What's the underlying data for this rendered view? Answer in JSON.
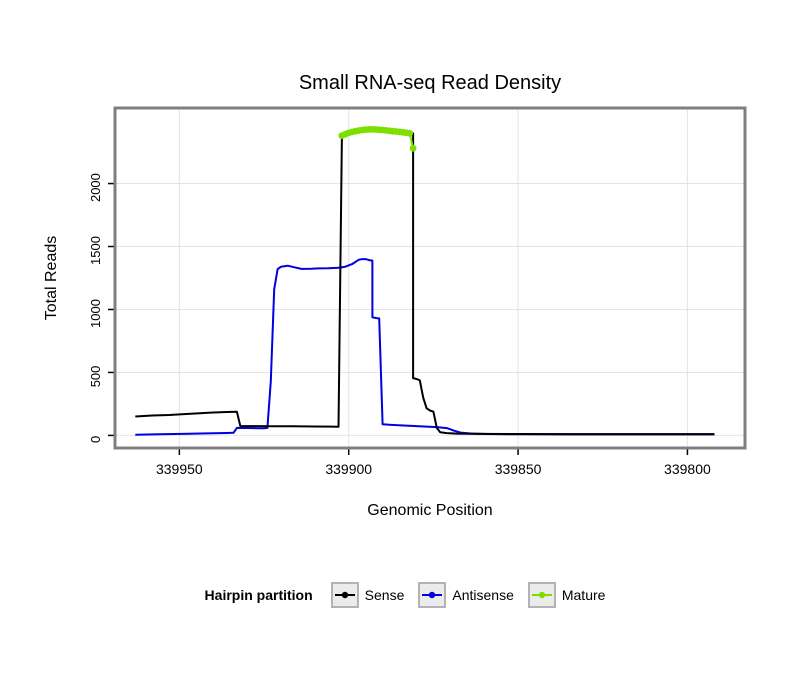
{
  "chart_data": {
    "type": "line",
    "title": "Small RNA-seq Read Density",
    "xlabel": "Genomic Position",
    "ylabel": "Total Reads",
    "legend_title": "Hairpin partition",
    "legend_position": "bottom",
    "grid": true,
    "x_reversed": true,
    "xlim": [
      339969,
      339783
    ],
    "ylim": [
      -100,
      2600
    ],
    "x_ticks": [
      339950,
      339900,
      339850,
      339800
    ],
    "y_ticks": [
      0,
      500,
      1000,
      1500,
      2000
    ],
    "panel_border_color": "#7f7f7f",
    "gridline_color": "#e4e4e4",
    "series": [
      {
        "name": "Sense",
        "color": "#000000",
        "marker": false,
        "z": 2,
        "points": [
          [
            339963,
            150
          ],
          [
            339958,
            158
          ],
          [
            339953,
            162
          ],
          [
            339948,
            170
          ],
          [
            339944,
            176
          ],
          [
            339940,
            182
          ],
          [
            339936,
            186
          ],
          [
            339933,
            188
          ],
          [
            339932,
            75
          ],
          [
            339928,
            74
          ],
          [
            339923,
            73
          ],
          [
            339917,
            72
          ],
          [
            339910,
            71
          ],
          [
            339905,
            70
          ],
          [
            339903,
            68
          ],
          [
            339902,
            2370
          ],
          [
            339901,
            2392
          ],
          [
            339900,
            2402
          ],
          [
            339898,
            2416
          ],
          [
            339896,
            2425
          ],
          [
            339894,
            2428
          ],
          [
            339892,
            2428
          ],
          [
            339890,
            2424
          ],
          [
            339888,
            2418
          ],
          [
            339886,
            2412
          ],
          [
            339884,
            2406
          ],
          [
            339882,
            2400
          ],
          [
            339881,
            2398
          ],
          [
            339881,
            455
          ],
          [
            339880,
            448
          ],
          [
            339879,
            438
          ],
          [
            339878,
            300
          ],
          [
            339877,
            215
          ],
          [
            339876,
            198
          ],
          [
            339875,
            188
          ],
          [
            339874,
            60
          ],
          [
            339873,
            25
          ],
          [
            339871,
            18
          ],
          [
            339868,
            14
          ],
          [
            339862,
            12
          ],
          [
            339850,
            11
          ],
          [
            339835,
            10
          ],
          [
            339820,
            10
          ],
          [
            339805,
            10
          ],
          [
            339792,
            10
          ]
        ]
      },
      {
        "name": "Antisense",
        "color": "#0000E0",
        "marker": false,
        "z": 1,
        "points": [
          [
            339963,
            6
          ],
          [
            339956,
            9
          ],
          [
            339949,
            12
          ],
          [
            339942,
            16
          ],
          [
            339936,
            19
          ],
          [
            339934,
            21
          ],
          [
            339933,
            60
          ],
          [
            339930,
            59
          ],
          [
            339927,
            57
          ],
          [
            339925,
            57
          ],
          [
            339924,
            60
          ],
          [
            339923,
            430
          ],
          [
            339922,
            1160
          ],
          [
            339921,
            1320
          ],
          [
            339920,
            1340
          ],
          [
            339918,
            1348
          ],
          [
            339916,
            1335
          ],
          [
            339914,
            1322
          ],
          [
            339911,
            1324
          ],
          [
            339909,
            1326
          ],
          [
            339906,
            1328
          ],
          [
            339903,
            1332
          ],
          [
            339901,
            1340
          ],
          [
            339899,
            1360
          ],
          [
            339897,
            1395
          ],
          [
            339896,
            1400
          ],
          [
            339895,
            1400
          ],
          [
            339894,
            1392
          ],
          [
            339893,
            1388
          ],
          [
            339893,
            938
          ],
          [
            339892,
            932
          ],
          [
            339891,
            928
          ],
          [
            339890,
            88
          ],
          [
            339888,
            84
          ],
          [
            339886,
            82
          ],
          [
            339883,
            78
          ],
          [
            339880,
            74
          ],
          [
            339877,
            70
          ],
          [
            339874,
            66
          ],
          [
            339871,
            58
          ],
          [
            339869,
            38
          ],
          [
            339867,
            22
          ],
          [
            339864,
            15
          ],
          [
            339859,
            11
          ],
          [
            339850,
            9
          ],
          [
            339835,
            8
          ],
          [
            339820,
            8
          ],
          [
            339805,
            8
          ],
          [
            339792,
            8
          ]
        ]
      },
      {
        "name": "Mature",
        "color": "#7CDF00",
        "marker": true,
        "z": 3,
        "points": [
          [
            339902,
            2380
          ],
          [
            339901,
            2392
          ],
          [
            339900,
            2402
          ],
          [
            339899,
            2410
          ],
          [
            339898,
            2416
          ],
          [
            339897,
            2421
          ],
          [
            339896,
            2425
          ],
          [
            339895,
            2428
          ],
          [
            339894,
            2430
          ],
          [
            339893,
            2430
          ],
          [
            339892,
            2429
          ],
          [
            339891,
            2427
          ],
          [
            339890,
            2425
          ],
          [
            339889,
            2422
          ],
          [
            339888,
            2419
          ],
          [
            339887,
            2416
          ],
          [
            339886,
            2413
          ],
          [
            339885,
            2410
          ],
          [
            339884,
            2407
          ],
          [
            339883,
            2403
          ],
          [
            339882,
            2399
          ],
          [
            339881,
            2280
          ]
        ]
      }
    ]
  }
}
